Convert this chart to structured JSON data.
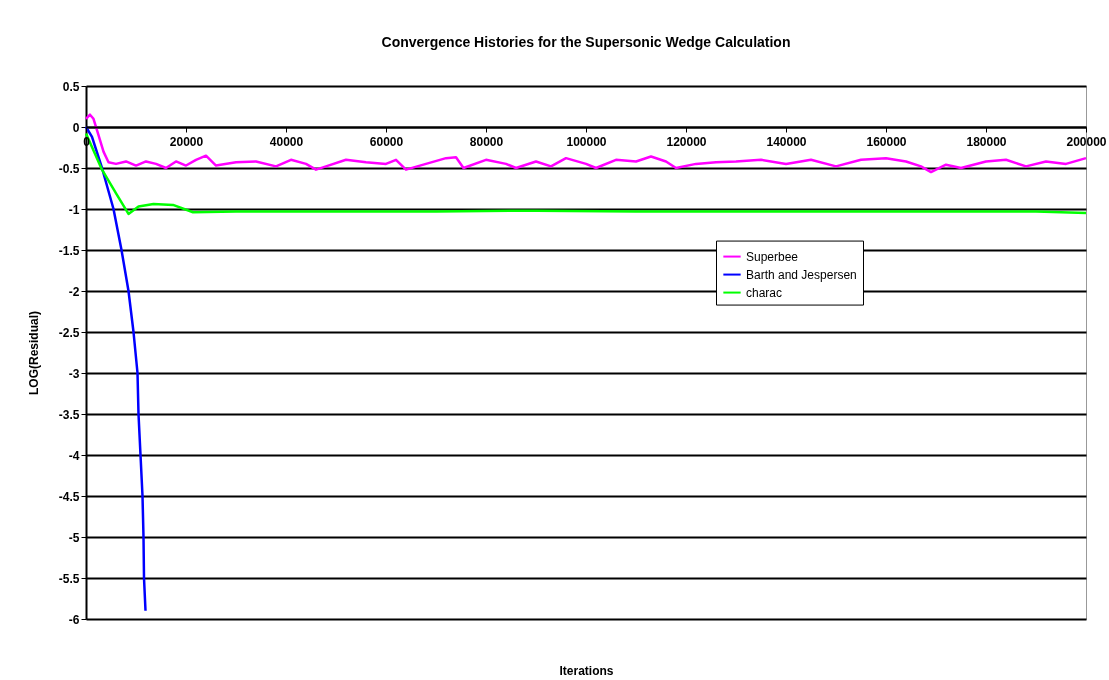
{
  "chart_data": {
    "type": "line",
    "title": "Convergence Histories for the Supersonic Wedge Calculation",
    "xlabel": "Iterations",
    "ylabel": "LOG(Residual)",
    "xlim": [
      0,
      200000
    ],
    "xticks": [
      0,
      20000,
      40000,
      60000,
      80000,
      100000,
      120000,
      140000,
      160000,
      180000,
      200000
    ],
    "ylim": [
      -6,
      0.5
    ],
    "yticks": [
      0.5,
      0,
      -0.5,
      -1,
      -1.5,
      -2,
      -2.5,
      -3,
      -3.5,
      -4,
      -4.5,
      -5,
      -5.5,
      -6
    ],
    "grid": "y",
    "legend": "right",
    "marker": "none",
    "line_style": "solid",
    "series": [
      {
        "name": "Superbee",
        "color": "#ff00ff",
        "x": [
          0,
          800,
          1500,
          2500,
          3500,
          4500,
          6000,
          8000,
          10000,
          12000,
          14000,
          16000,
          18000,
          20000,
          22000,
          24000,
          26000,
          30000,
          34000,
          38000,
          41000,
          44000,
          46000,
          48000,
          52000,
          56000,
          60000,
          62000,
          64000,
          68000,
          72000,
          74000,
          75500,
          80000,
          84000,
          86000,
          90000,
          93000,
          96000,
          100000,
          102000,
          106000,
          110000,
          113000,
          116000,
          118000,
          122000,
          126000,
          130000,
          135000,
          140000,
          145000,
          150000,
          155000,
          160000,
          164000,
          167000,
          169000,
          172000,
          175000,
          180000,
          184000,
          188000,
          192000,
          196000,
          200000
        ],
        "values": [
          0.1,
          0.15,
          0.1,
          -0.1,
          -0.3,
          -0.43,
          -0.45,
          -0.42,
          -0.47,
          -0.42,
          -0.45,
          -0.5,
          -0.42,
          -0.47,
          -0.4,
          -0.35,
          -0.47,
          -0.43,
          -0.42,
          -0.48,
          -0.4,
          -0.45,
          -0.52,
          -0.48,
          -0.4,
          -0.43,
          -0.45,
          -0.4,
          -0.52,
          -0.45,
          -0.38,
          -0.37,
          -0.5,
          -0.4,
          -0.45,
          -0.5,
          -0.42,
          -0.48,
          -0.38,
          -0.45,
          -0.5,
          -0.4,
          -0.42,
          -0.36,
          -0.42,
          -0.5,
          -0.45,
          -0.43,
          -0.42,
          -0.4,
          -0.45,
          -0.4,
          -0.48,
          -0.4,
          -0.38,
          -0.42,
          -0.48,
          -0.55,
          -0.46,
          -0.5,
          -0.42,
          -0.4,
          -0.48,
          -0.42,
          -0.45,
          -0.38
        ]
      },
      {
        "name": "Barth and Jespersen",
        "color": "#0000ff",
        "x": [
          0,
          1200,
          3200,
          5500,
          7100,
          8500,
          9500,
          10300,
          10500,
          10900,
          11300,
          11500,
          11600,
          11900
        ],
        "values": [
          0,
          -0.12,
          -0.5,
          -1,
          -1.5,
          -2,
          -2.5,
          -3,
          -3.5,
          -4,
          -4.5,
          -5,
          -5.5,
          -5.9
        ]
      },
      {
        "name": "charac",
        "color": "#00ff00",
        "x": [
          0,
          3200,
          6100,
          8500,
          10500,
          13500,
          17400,
          21400,
          30000,
          50000,
          70000,
          90000,
          110000,
          130000,
          150000,
          170000,
          190000,
          200000
        ],
        "values": [
          -0.08,
          -0.52,
          -0.82,
          -1.06,
          -0.97,
          -0.94,
          -0.95,
          -1.04,
          -1.03,
          -1.03,
          -1.03,
          -1.02,
          -1.03,
          -1.03,
          -1.03,
          -1.03,
          -1.03,
          -1.05
        ]
      }
    ]
  }
}
